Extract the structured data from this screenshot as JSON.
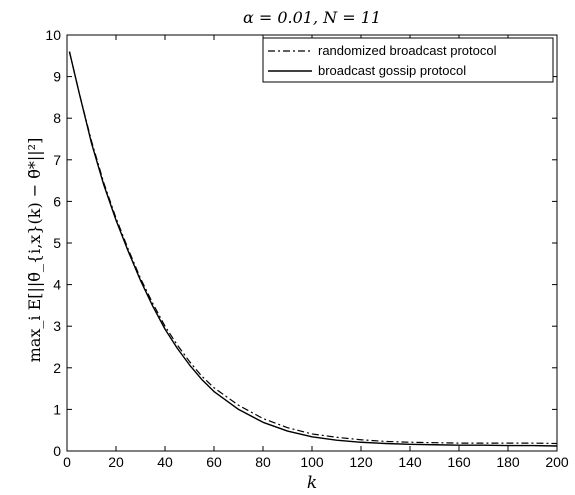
{
  "chart_data": {
    "type": "line",
    "title": "α = 0.01, N = 11",
    "xlabel": "k",
    "ylabel": "max_i E[||θ̃_{i,x}(k) − θ̃*||²]",
    "xlim": [
      0,
      200
    ],
    "ylim": [
      0,
      10
    ],
    "xticks": [
      0,
      20,
      40,
      60,
      80,
      100,
      120,
      140,
      160,
      180,
      200
    ],
    "yticks": [
      0,
      1,
      2,
      3,
      4,
      5,
      6,
      7,
      8,
      9,
      10
    ],
    "grid": false,
    "legend_position": "top-right",
    "series": [
      {
        "name": "randomized broadcast protocol",
        "style": "dash-dot",
        "color": "#000000",
        "x": [
          1,
          5,
          10,
          15,
          20,
          25,
          30,
          35,
          40,
          45,
          50,
          55,
          60,
          70,
          80,
          90,
          100,
          110,
          120,
          130,
          140,
          150,
          160,
          170,
          180,
          190,
          200
        ],
        "y": [
          9.6,
          8.6,
          7.45,
          6.45,
          5.6,
          4.85,
          4.15,
          3.55,
          3.0,
          2.55,
          2.15,
          1.8,
          1.52,
          1.1,
          0.78,
          0.56,
          0.41,
          0.33,
          0.27,
          0.23,
          0.21,
          0.2,
          0.19,
          0.19,
          0.19,
          0.19,
          0.18
        ]
      },
      {
        "name": "broadcast gossip protocol",
        "style": "solid",
        "color": "#000000",
        "x": [
          1,
          5,
          10,
          15,
          20,
          25,
          30,
          35,
          40,
          45,
          50,
          55,
          60,
          70,
          80,
          90,
          100,
          110,
          120,
          130,
          140,
          150,
          160,
          170,
          180,
          190,
          200
        ],
        "y": [
          9.6,
          8.6,
          7.4,
          6.4,
          5.55,
          4.8,
          4.1,
          3.48,
          2.93,
          2.47,
          2.07,
          1.72,
          1.43,
          1.0,
          0.69,
          0.48,
          0.34,
          0.26,
          0.21,
          0.18,
          0.16,
          0.15,
          0.14,
          0.14,
          0.13,
          0.13,
          0.12
        ]
      }
    ]
  }
}
